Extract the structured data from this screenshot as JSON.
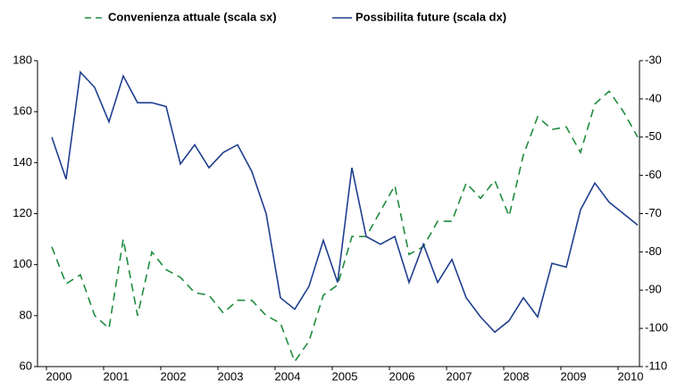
{
  "chart_data": {
    "type": "line",
    "categories": [
      "2000",
      null,
      null,
      null,
      "2001",
      null,
      null,
      null,
      "2002",
      null,
      null,
      null,
      "2003",
      null,
      null,
      null,
      "2004",
      null,
      null,
      null,
      "2005",
      null,
      null,
      null,
      "2006",
      null,
      null,
      null,
      "2007",
      null,
      null,
      null,
      "2008",
      null,
      null,
      null,
      "2009",
      null,
      null,
      null,
      "2010",
      null
    ],
    "series": [
      {
        "name": "Convenienza attuale (scala sx)",
        "color": "#1e8c3e",
        "dash": true,
        "values": [
          107,
          92.5,
          96,
          80,
          75,
          110,
          80,
          105,
          98,
          95,
          89,
          88,
          81,
          86,
          86,
          80,
          77,
          62,
          70,
          88,
          92,
          111,
          111,
          121,
          131,
          104,
          107,
          117,
          117,
          132,
          126,
          133,
          119,
          143,
          158,
          153,
          154,
          144,
          163,
          168,
          160,
          150
        ]
      },
      {
        "name": "Possibilita future (scala dx)",
        "color": "#1f3f8f",
        "axis": "y2",
        "values": [
          -50,
          -61,
          -33,
          -37,
          -46,
          -34,
          -41,
          -41,
          -42,
          -57,
          -52,
          -58,
          -54,
          -52,
          -59,
          -70,
          -92,
          -95,
          -89,
          -77,
          -88,
          -58,
          -76,
          -78,
          -76,
          -88,
          -78,
          -88,
          -82,
          -92,
          -97,
          -101,
          -98,
          -92,
          -97,
          -83,
          -84,
          -69,
          -62,
          -67,
          -70,
          -73
        ]
      }
    ],
    "ylim": [
      60,
      180
    ],
    "yticks": [
      60,
      80,
      100,
      120,
      140,
      160,
      180
    ],
    "y2lim": [
      -110,
      -30
    ],
    "y2ticks": [
      -110,
      -100,
      -90,
      -80,
      -70,
      -60,
      -50,
      -40,
      -30
    ]
  }
}
